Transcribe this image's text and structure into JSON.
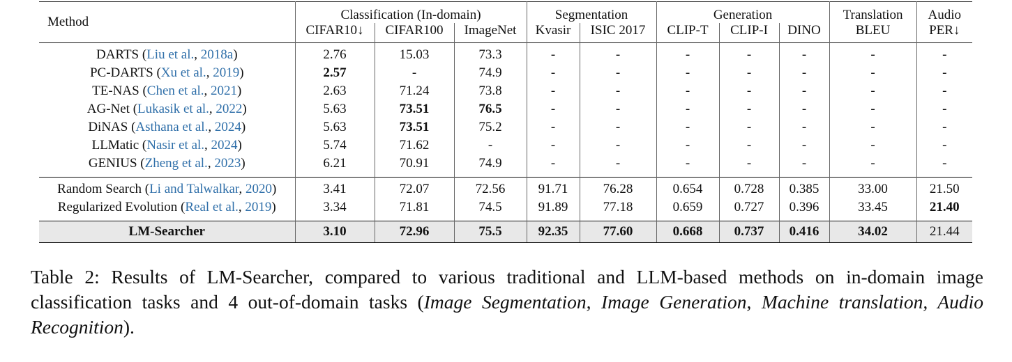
{
  "table": {
    "method_header": "Method",
    "groups": [
      {
        "label": "Classification (In-domain)"
      },
      {
        "label": "Segmentation"
      },
      {
        "label": "Generation"
      },
      {
        "label": "Translation"
      },
      {
        "label": "Audio"
      }
    ],
    "columns": [
      "CIFAR10↓",
      "CIFAR100",
      "ImageNet",
      "Kvasir",
      "ISIC 2017",
      "CLIP-T",
      "CLIP-I",
      "DINO",
      "BLEU",
      "PER↓"
    ],
    "rows": [
      {
        "name": "DARTS",
        "cite_authors": "Liu et al.",
        "cite_year": "2018a",
        "values": [
          "2.76",
          "15.03",
          "73.3",
          "-",
          "-",
          "-",
          "-",
          "-",
          "-",
          "-"
        ],
        "bold": []
      },
      {
        "name": "PC-DARTS",
        "cite_authors": "Xu et al.",
        "cite_year": "2019",
        "values": [
          "2.57",
          "-",
          "74.9",
          "-",
          "-",
          "-",
          "-",
          "-",
          "-",
          "-"
        ],
        "bold": [
          0
        ]
      },
      {
        "name": "TE-NAS",
        "cite_authors": "Chen et al.",
        "cite_year": "2021",
        "values": [
          "2.63",
          "71.24",
          "73.8",
          "-",
          "-",
          "-",
          "-",
          "-",
          "-",
          "-"
        ],
        "bold": []
      },
      {
        "name": "AG-Net",
        "cite_authors": "Lukasik et al.",
        "cite_year": "2022",
        "values": [
          "5.63",
          "73.51",
          "76.5",
          "-",
          "-",
          "-",
          "-",
          "-",
          "-",
          "-"
        ],
        "bold": [
          1,
          2
        ]
      },
      {
        "name": "DiNAS",
        "cite_authors": "Asthana et al.",
        "cite_year": "2024",
        "values": [
          "5.63",
          "73.51",
          "75.2",
          "-",
          "-",
          "-",
          "-",
          "-",
          "-",
          "-"
        ],
        "bold": [
          1
        ]
      },
      {
        "name": "LLMatic",
        "cite_authors": "Nasir et al.",
        "cite_year": "2024",
        "values": [
          "5.74",
          "71.62",
          "-",
          "-",
          "-",
          "-",
          "-",
          "-",
          "-",
          "-"
        ],
        "bold": []
      },
      {
        "name": "GENIUS",
        "cite_authors": "Zheng et al.",
        "cite_year": "2023",
        "values": [
          "6.21",
          "70.91",
          "74.9",
          "-",
          "-",
          "-",
          "-",
          "-",
          "-",
          "-"
        ],
        "bold": []
      },
      {
        "name": "Random Search",
        "cite_authors": "Li and Talwalkar",
        "cite_year": "2020",
        "values": [
          "3.41",
          "72.07",
          "72.56",
          "91.71",
          "76.28",
          "0.654",
          "0.728",
          "0.385",
          "33.00",
          "21.50"
        ],
        "bold": []
      },
      {
        "name": "Regularized Evolution",
        "cite_authors": "Real et al.",
        "cite_year": "2019",
        "values": [
          "3.34",
          "71.81",
          "74.5",
          "91.89",
          "77.18",
          "0.659",
          "0.727",
          "0.396",
          "33.45",
          "21.40"
        ],
        "bold": [
          9
        ]
      }
    ],
    "ours": {
      "name": "LM-Searcher",
      "values": [
        "3.10",
        "72.96",
        "75.5",
        "92.35",
        "77.60",
        "0.668",
        "0.737",
        "0.416",
        "34.02",
        "21.44"
      ]
    }
  },
  "caption": {
    "prefix": "Table 2: Results of LM-Searcher, compared to various traditional and LLM-based methods on in-domain image classification tasks and 4 out-of-domain tasks (",
    "italic": "Image Segmentation, Image Generation, Machine translation, Audio Recognition",
    "suffix": ")."
  }
}
